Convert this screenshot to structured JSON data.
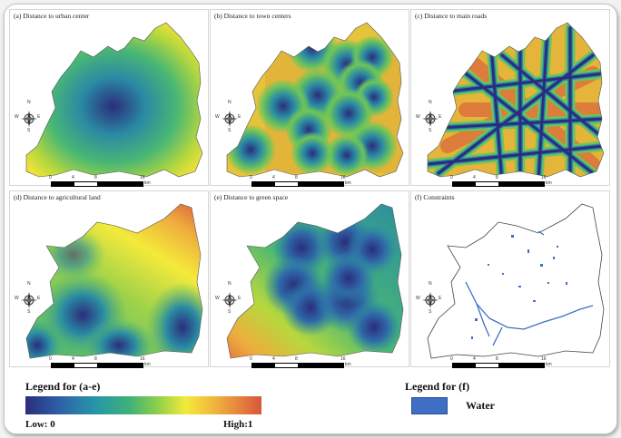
{
  "panels": [
    {
      "title": "(a) Distance to urban center"
    },
    {
      "title": "(b) Distance to town centers"
    },
    {
      "title": "(c) Distance to main roads"
    },
    {
      "title": "(d) Distance to agricultural land"
    },
    {
      "title": "(e) Distance to green space"
    },
    {
      "title": "(f) Constraints"
    }
  ],
  "scalebar": {
    "ticks": [
      "0",
      "4",
      "8",
      "16"
    ],
    "unit": "km"
  },
  "compass": {
    "n": "N",
    "s": "S",
    "e": "E",
    "w": "W"
  },
  "legend_ae": {
    "title": "Legend for (a-e)",
    "low": "Low: 0",
    "high": "High:1"
  },
  "legend_f": {
    "title": "Legend for (f)",
    "item": "Water"
  },
  "colors": {
    "low": "#2b2d7c",
    "mid": "#f4ea3a",
    "high": "#d8563c",
    "water": "#3f6fc4"
  }
}
